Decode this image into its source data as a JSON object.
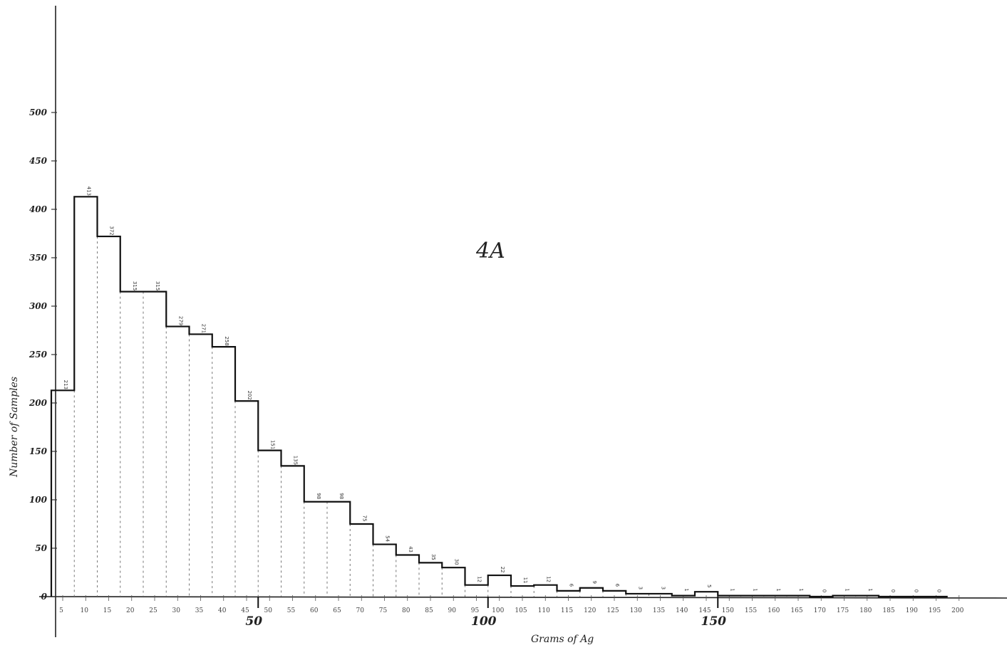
{
  "chart_data": {
    "type": "bar",
    "title": "4A",
    "xlabel": "Grams of Ag",
    "ylabel": "Number of Samples",
    "ylim": [
      0,
      500
    ],
    "yticks": [
      "0",
      "50",
      "100",
      "150",
      "200",
      "250",
      "300",
      "350",
      "400",
      "450",
      "500"
    ],
    "xticks": [
      "5",
      "10",
      "15",
      "20",
      "25",
      "30",
      "35",
      "40",
      "45",
      "50",
      "55",
      "60",
      "65",
      "70",
      "75",
      "80",
      "85",
      "90",
      "95",
      "100",
      "105",
      "110",
      "115",
      "120",
      "125",
      "130",
      "135",
      "140",
      "145",
      "150",
      "155",
      "160",
      "165",
      "170",
      "175",
      "180",
      "185",
      "190",
      "195",
      "200"
    ],
    "major_xticks": [
      "50",
      "100",
      "150"
    ],
    "bin_width": 5,
    "bins": [
      {
        "start": 5,
        "value": 213,
        "label": "213"
      },
      {
        "start": 10,
        "value": 413,
        "label": "413"
      },
      {
        "start": 15,
        "value": 372,
        "label": "372"
      },
      {
        "start": 20,
        "value": 315,
        "label": "315"
      },
      {
        "start": 25,
        "value": 315,
        "label": "315"
      },
      {
        "start": 30,
        "value": 279,
        "label": "279"
      },
      {
        "start": 35,
        "value": 271,
        "label": "271"
      },
      {
        "start": 40,
        "value": 258,
        "label": "258"
      },
      {
        "start": 45,
        "value": 202,
        "label": "202"
      },
      {
        "start": 50,
        "value": 151,
        "label": "151"
      },
      {
        "start": 55,
        "value": 135,
        "label": "135"
      },
      {
        "start": 60,
        "value": 98,
        "label": "98"
      },
      {
        "start": 65,
        "value": 98,
        "label": "98"
      },
      {
        "start": 70,
        "value": 75,
        "label": "75"
      },
      {
        "start": 75,
        "value": 54,
        "label": "54"
      },
      {
        "start": 80,
        "value": 43,
        "label": "43"
      },
      {
        "start": 85,
        "value": 35,
        "label": "35"
      },
      {
        "start": 90,
        "value": 30,
        "label": "30"
      },
      {
        "start": 95,
        "value": 12,
        "label": "12"
      },
      {
        "start": 100,
        "value": 22,
        "label": "22"
      },
      {
        "start": 105,
        "value": 11,
        "label": "11"
      },
      {
        "start": 110,
        "value": 12,
        "label": "12"
      },
      {
        "start": 115,
        "value": 6,
        "label": "6"
      },
      {
        "start": 120,
        "value": 9,
        "label": "9"
      },
      {
        "start": 125,
        "value": 6,
        "label": "6"
      },
      {
        "start": 130,
        "value": 3,
        "label": "3"
      },
      {
        "start": 135,
        "value": 3,
        "label": "3"
      },
      {
        "start": 140,
        "value": 1,
        "label": "1"
      },
      {
        "start": 145,
        "value": 5,
        "label": "5"
      },
      {
        "start": 150,
        "value": 1,
        "label": "1"
      },
      {
        "start": 155,
        "value": 1,
        "label": "1"
      },
      {
        "start": 160,
        "value": 1,
        "label": "1"
      },
      {
        "start": 165,
        "value": 1,
        "label": "1"
      },
      {
        "start": 170,
        "value": 0,
        "label": "0"
      },
      {
        "start": 175,
        "value": 1,
        "label": "1"
      },
      {
        "start": 180,
        "value": 1,
        "label": "1"
      },
      {
        "start": 185,
        "value": 0,
        "label": "0"
      },
      {
        "start": 190,
        "value": 0,
        "label": "0"
      },
      {
        "start": 195,
        "value": 0,
        "label": "0"
      }
    ]
  }
}
